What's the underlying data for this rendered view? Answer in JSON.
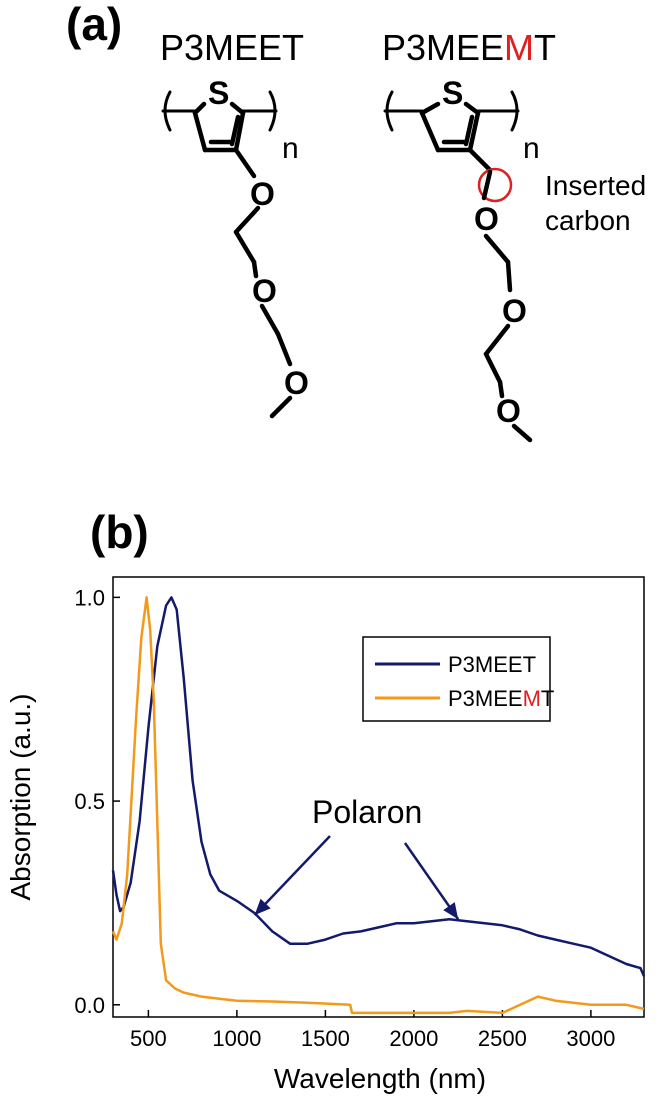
{
  "panel_a": {
    "label": "(a)",
    "polymer1": {
      "name": "P3MEET"
    },
    "polymer2": {
      "name_prefix": "P3MEE",
      "name_highlight": "M",
      "name_suffix": "T"
    },
    "atoms": {
      "sulfur": "S",
      "oxygen": "O",
      "repeat": "n"
    },
    "annotation_line1": "Inserted",
    "annotation_line2": "carbon",
    "highlight_color": "#e02020"
  },
  "panel_b": {
    "label": "(b)"
  },
  "colors": {
    "p3meet": "#141a6b",
    "p3meemt": "#f39a1b",
    "highlight": "#e02020"
  },
  "chart_data": {
    "type": "line",
    "xlabel": "Wavelength (nm)",
    "ylabel": "Absorption (a.u.)",
    "xlim": [
      300,
      3300
    ],
    "ylim": [
      -0.03,
      1.05
    ],
    "xticks": [
      500,
      1000,
      1500,
      2000,
      2500,
      3000
    ],
    "yticks": [
      0.0,
      0.5,
      1.0
    ],
    "ytick_labels": [
      "0.0",
      "0.5",
      "1.0"
    ],
    "legend_position": "top-right",
    "series": [
      {
        "name": "P3MEET",
        "color": "#141a6b",
        "x": [
          300,
          320,
          340,
          360,
          400,
          450,
          500,
          550,
          600,
          630,
          660,
          700,
          750,
          800,
          850,
          900,
          1000,
          1100,
          1200,
          1300,
          1400,
          1500,
          1600,
          1700,
          1800,
          1900,
          2000,
          2100,
          2200,
          2300,
          2400,
          2500,
          2600,
          2700,
          2800,
          2900,
          3000,
          3100,
          3200,
          3280,
          3300
        ],
        "y": [
          0.33,
          0.27,
          0.23,
          0.24,
          0.3,
          0.45,
          0.68,
          0.88,
          0.98,
          1.0,
          0.97,
          0.8,
          0.55,
          0.4,
          0.32,
          0.28,
          0.255,
          0.225,
          0.18,
          0.15,
          0.15,
          0.16,
          0.175,
          0.18,
          0.19,
          0.2,
          0.2,
          0.205,
          0.21,
          0.205,
          0.2,
          0.195,
          0.185,
          0.17,
          0.16,
          0.15,
          0.14,
          0.12,
          0.1,
          0.09,
          0.07
        ]
      },
      {
        "name": "P3MEEMT",
        "color": "#f39a1b",
        "x": [
          300,
          320,
          350,
          380,
          400,
          430,
          460,
          490,
          510,
          530,
          550,
          570,
          600,
          650,
          700,
          800,
          900,
          1000,
          1200,
          1400,
          1640,
          1650,
          1800,
          2000,
          2200,
          2300,
          2500,
          2600,
          2700,
          2800,
          3000,
          3200,
          3300
        ],
        "y": [
          0.18,
          0.16,
          0.2,
          0.32,
          0.47,
          0.7,
          0.9,
          1.0,
          0.92,
          0.75,
          0.45,
          0.15,
          0.06,
          0.04,
          0.03,
          0.02,
          0.015,
          0.01,
          0.008,
          0.005,
          0.0,
          -0.02,
          -0.02,
          -0.02,
          -0.02,
          -0.015,
          -0.02,
          0.0,
          0.02,
          0.01,
          0.0,
          0.0,
          -0.01
        ]
      }
    ],
    "annotations": [
      {
        "text": "Polaron",
        "arrows_to": [
          [
            1100,
            0.22
          ],
          [
            2250,
            0.21
          ]
        ]
      }
    ]
  }
}
